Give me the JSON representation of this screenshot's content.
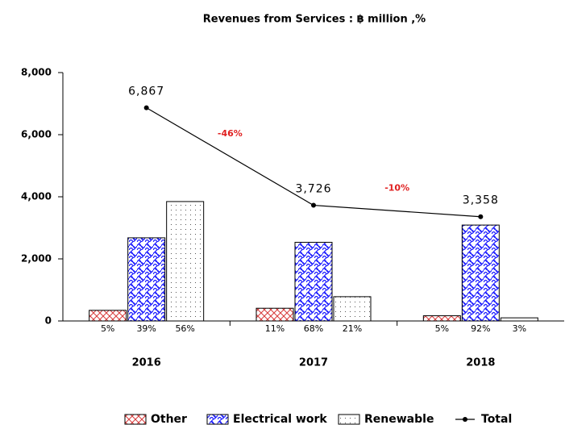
{
  "chart_data": {
    "type": "bar",
    "title": "Revenues from Services : ฿ million ,%",
    "categories": [
      "2016",
      "2017",
      "2018"
    ],
    "series": [
      {
        "name": "Other",
        "color": "#d83a3a",
        "values": [
          343,
          410,
          168
        ],
        "share_labels": [
          "5%",
          "11%",
          "5%"
        ]
      },
      {
        "name": "Electrical work",
        "color": "#1a1aff",
        "values": [
          2678,
          2534,
          3089
        ],
        "share_labels": [
          "39%",
          "68%",
          "92%"
        ]
      },
      {
        "name": "Renewable",
        "color": "#555555",
        "values": [
          3846,
          782,
          101
        ],
        "share_labels": [
          "56%",
          "21%",
          "3%"
        ]
      },
      {
        "name": "Total",
        "type": "line",
        "color": "#000000",
        "values": [
          6867,
          3726,
          3358
        ],
        "value_labels": [
          "6,867",
          "3,726",
          "3,358"
        ]
      }
    ],
    "annotations": [
      {
        "text": "-46%",
        "color": "#e02020"
      },
      {
        "text": "-10%",
        "color": "#e02020"
      }
    ],
    "ylim": [
      0,
      8000
    ],
    "yticks": [
      0,
      {
        "value": 2000,
        "label": "2,000"
      },
      {
        "value": 4000,
        "label": "4,000"
      },
      {
        "value": 6000,
        "label": "6,000"
      },
      {
        "value": 8000,
        "label": "8,000"
      }
    ],
    "legend": "bottom"
  }
}
